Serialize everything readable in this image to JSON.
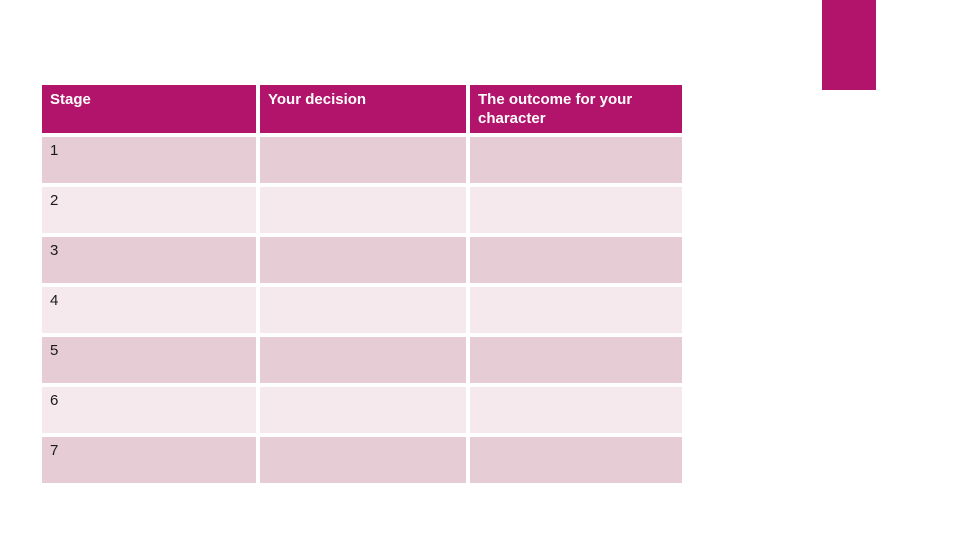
{
  "slide": {
    "background_color": "#ffffff",
    "accent_color": "#b1146a"
  },
  "decoration": {
    "corner_rectangle_color": "#b1146a"
  },
  "table": {
    "columns": [
      "Stage",
      "Your decision",
      "The outcome for your character"
    ],
    "rows": [
      {
        "stage": "1",
        "decision": "",
        "outcome": ""
      },
      {
        "stage": "2",
        "decision": "",
        "outcome": ""
      },
      {
        "stage": "3",
        "decision": "",
        "outcome": ""
      },
      {
        "stage": "4",
        "decision": "",
        "outcome": ""
      },
      {
        "stage": "5",
        "decision": "",
        "outcome": ""
      },
      {
        "stage": "6",
        "decision": "",
        "outcome": ""
      },
      {
        "stage": "7",
        "decision": "",
        "outcome": ""
      }
    ],
    "colors": {
      "header_bg": "#b1146a",
      "header_text": "#ffffff",
      "row_odd_bg": "#e5ccd5",
      "row_even_bg": "#f5e9ee",
      "gap": "#ffffff"
    }
  }
}
